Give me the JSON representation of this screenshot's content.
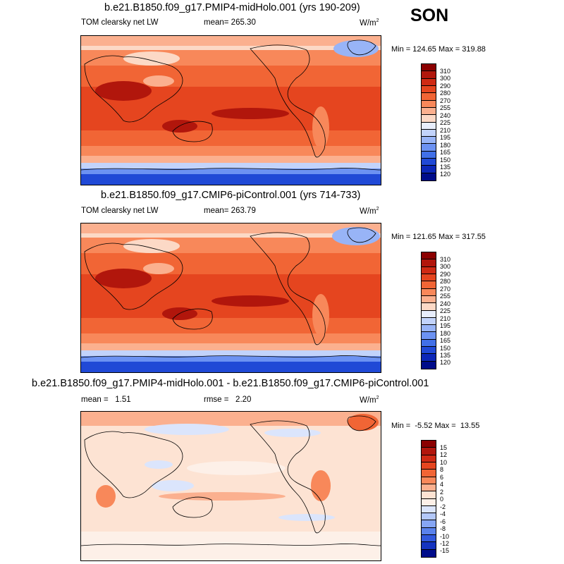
{
  "season": "SON",
  "panels": [
    {
      "title": "b.e21.B1850.f09_g17.PMIP4-midHolo.001 (yrs 190-209)",
      "left_label": "TOM clearsky net LW",
      "mid_label": "mean= 265.30",
      "units_base": "W/m",
      "units_exp": "2",
      "minmax": "Min = 124.65 Max = 319.88",
      "colorbar": {
        "labels": [
          "310",
          "300",
          "290",
          "280",
          "270",
          "255",
          "240",
          "225",
          "210",
          "195",
          "180",
          "165",
          "150",
          "135",
          "120"
        ],
        "colors": [
          "#8b0000",
          "#b1160c",
          "#cf2a14",
          "#e5451f",
          "#f16535",
          "#f8885a",
          "#fbb08f",
          "#fcd9c6",
          "#e8eefc",
          "#c2d3fb",
          "#98b4f7",
          "#6c92f2",
          "#4170e8",
          "#2049d6",
          "#0c27b8",
          "#000c8a"
        ]
      }
    },
    {
      "title": "b.e21.B1850.f09_g17.CMIP6-piControl.001 (yrs 714-733)",
      "left_label": "TOM clearsky net LW",
      "mid_label": "mean= 263.79",
      "units_base": "W/m",
      "units_exp": "2",
      "minmax": "Min = 121.65 Max = 317.55",
      "colorbar": {
        "labels": [
          "310",
          "300",
          "290",
          "280",
          "270",
          "255",
          "240",
          "225",
          "210",
          "195",
          "180",
          "165",
          "150",
          "135",
          "120"
        ],
        "colors": [
          "#8b0000",
          "#b1160c",
          "#cf2a14",
          "#e5451f",
          "#f16535",
          "#f8885a",
          "#fbb08f",
          "#fcd9c6",
          "#e8eefc",
          "#c2d3fb",
          "#98b4f7",
          "#6c92f2",
          "#4170e8",
          "#2049d6",
          "#0c27b8",
          "#000c8a"
        ]
      }
    },
    {
      "title": "b.e21.B1850.f09_g17.PMIP4-midHolo.001 - b.e21.B1850.f09_g17.CMIP6-piControl.001",
      "left_label": "mean =   1.51",
      "mid_label": "rmse =   2.20",
      "units_base": "W/m",
      "units_exp": "2",
      "minmax": "Min =  -5.52 Max =  13.55",
      "colorbar": {
        "labels": [
          "15",
          "12",
          "10",
          "8",
          "6",
          "4",
          "2",
          "0",
          "-2",
          "-4",
          "-6",
          "-8",
          "-10",
          "-12",
          "-15"
        ],
        "colors": [
          "#8b0000",
          "#b1160c",
          "#cf2a14",
          "#e5451f",
          "#f16535",
          "#f8885a",
          "#fbb08f",
          "#fde3d3",
          "#fdf0e8",
          "#dbe5fc",
          "#b3c8f9",
          "#86a6f4",
          "#5a82ec",
          "#3259dd",
          "#1534c0",
          "#000c8a"
        ]
      }
    }
  ]
}
